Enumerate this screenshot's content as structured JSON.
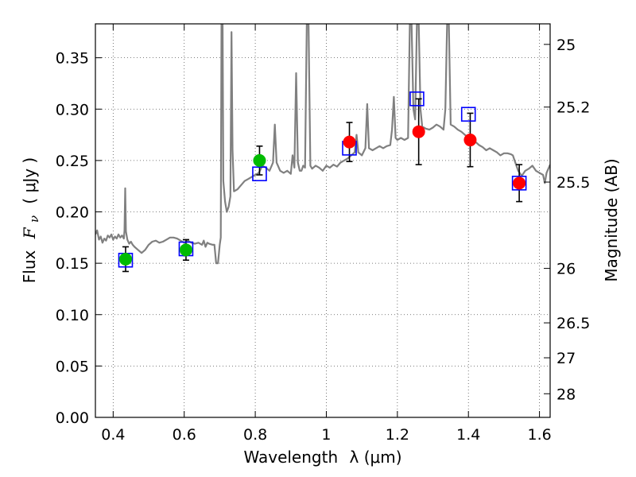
{
  "chart_data": {
    "type": "scatter",
    "title": "",
    "xlabel": "Wavelength",
    "xlabel_math": "λ (μm)",
    "ylabel": "Flux",
    "ylabel_math": "F",
    "ylabel_sub": "ν",
    "ylabel_unit": "( μJy )",
    "y2label": "Magnitude (AB)",
    "xlim": [
      0.35,
      1.63
    ],
    "ylim": [
      0.0,
      0.383
    ],
    "grid": true,
    "xticks": [
      0.4,
      0.6,
      0.8,
      1.0,
      1.2,
      1.4,
      1.6
    ],
    "xtick_labels": [
      "0.4",
      "0.6",
      "0.8",
      "1",
      "1.2",
      "1.4",
      "1.6"
    ],
    "yticks": [
      0.0,
      0.05,
      0.1,
      0.15,
      0.2,
      0.25,
      0.3,
      0.35
    ],
    "ytick_labels": [
      "0.00",
      "0.05",
      "0.10",
      "0.15",
      "0.20",
      "0.25",
      "0.30",
      "0.35"
    ],
    "y2ticks": [
      {
        "label": "25",
        "flux": 0.363
      },
      {
        "label": "25.2",
        "flux": 0.302
      },
      {
        "label": "25.5",
        "flux": 0.229
      },
      {
        "label": "26",
        "flux": 0.145
      },
      {
        "label": "26.5",
        "flux": 0.092
      },
      {
        "label": "27",
        "flux": 0.058
      },
      {
        "label": "28",
        "flux": 0.023
      }
    ],
    "colors": {
      "spectrum": "#808080",
      "model": "#0000ff",
      "green_points": "#00bb00",
      "red_points": "#ff0000",
      "errorbar": "#000000",
      "grid": "#555555"
    },
    "series": [
      {
        "kind": "spectrum",
        "points": [
          [
            0.35,
            0.178
          ],
          [
            0.355,
            0.182
          ],
          [
            0.36,
            0.173
          ],
          [
            0.365,
            0.176
          ],
          [
            0.37,
            0.17
          ],
          [
            0.375,
            0.174
          ],
          [
            0.38,
            0.172
          ],
          [
            0.385,
            0.177
          ],
          [
            0.39,
            0.175
          ],
          [
            0.395,
            0.178
          ],
          [
            0.4,
            0.173
          ],
          [
            0.405,
            0.176
          ],
          [
            0.41,
            0.174
          ],
          [
            0.415,
            0.178
          ],
          [
            0.42,
            0.175
          ],
          [
            0.425,
            0.177
          ],
          [
            0.43,
            0.174
          ],
          [
            0.432,
            0.182
          ],
          [
            0.434,
            0.223
          ],
          [
            0.436,
            0.181
          ],
          [
            0.44,
            0.173
          ],
          [
            0.445,
            0.169
          ],
          [
            0.45,
            0.171
          ],
          [
            0.455,
            0.168
          ],
          [
            0.46,
            0.166
          ],
          [
            0.47,
            0.163
          ],
          [
            0.48,
            0.16
          ],
          [
            0.49,
            0.163
          ],
          [
            0.5,
            0.168
          ],
          [
            0.51,
            0.171
          ],
          [
            0.52,
            0.172
          ],
          [
            0.53,
            0.17
          ],
          [
            0.54,
            0.171
          ],
          [
            0.55,
            0.173
          ],
          [
            0.56,
            0.175
          ],
          [
            0.57,
            0.175
          ],
          [
            0.58,
            0.174
          ],
          [
            0.59,
            0.172
          ],
          [
            0.6,
            0.17
          ],
          [
            0.61,
            0.172
          ],
          [
            0.62,
            0.17
          ],
          [
            0.63,
            0.169
          ],
          [
            0.64,
            0.17
          ],
          [
            0.65,
            0.168
          ],
          [
            0.655,
            0.172
          ],
          [
            0.66,
            0.166
          ],
          [
            0.665,
            0.17
          ],
          [
            0.67,
            0.169
          ],
          [
            0.68,
            0.168
          ],
          [
            0.685,
            0.168
          ],
          [
            0.69,
            0.15
          ],
          [
            0.695,
            0.15
          ],
          [
            0.7,
            0.168
          ],
          [
            0.703,
            0.175
          ],
          [
            0.705,
            0.383
          ],
          [
            0.708,
            0.383
          ],
          [
            0.71,
            0.23
          ],
          [
            0.715,
            0.21
          ],
          [
            0.72,
            0.2
          ],
          [
            0.725,
            0.205
          ],
          [
            0.73,
            0.215
          ],
          [
            0.733,
            0.375
          ],
          [
            0.736,
            0.26
          ],
          [
            0.74,
            0.22
          ],
          [
            0.75,
            0.222
          ],
          [
            0.76,
            0.226
          ],
          [
            0.77,
            0.23
          ],
          [
            0.78,
            0.232
          ],
          [
            0.79,
            0.234
          ],
          [
            0.8,
            0.236
          ],
          [
            0.81,
            0.238
          ],
          [
            0.82,
            0.245
          ],
          [
            0.83,
            0.243
          ],
          [
            0.84,
            0.24
          ],
          [
            0.85,
            0.248
          ],
          [
            0.855,
            0.285
          ],
          [
            0.86,
            0.248
          ],
          [
            0.87,
            0.24
          ],
          [
            0.88,
            0.238
          ],
          [
            0.89,
            0.24
          ],
          [
            0.9,
            0.237
          ],
          [
            0.905,
            0.255
          ],
          [
            0.91,
            0.243
          ],
          [
            0.915,
            0.335
          ],
          [
            0.92,
            0.248
          ],
          [
            0.925,
            0.24
          ],
          [
            0.93,
            0.24
          ],
          [
            0.935,
            0.245
          ],
          [
            0.94,
            0.243
          ],
          [
            0.945,
            0.383
          ],
          [
            0.95,
            0.383
          ],
          [
            0.955,
            0.245
          ],
          [
            0.96,
            0.242
          ],
          [
            0.97,
            0.245
          ],
          [
            0.98,
            0.243
          ],
          [
            0.99,
            0.24
          ],
          [
            1.0,
            0.245
          ],
          [
            1.01,
            0.243
          ],
          [
            1.02,
            0.246
          ],
          [
            1.03,
            0.244
          ],
          [
            1.04,
            0.248
          ],
          [
            1.05,
            0.25
          ],
          [
            1.06,
            0.252
          ],
          [
            1.07,
            0.255
          ],
          [
            1.08,
            0.258
          ],
          [
            1.085,
            0.275
          ],
          [
            1.09,
            0.258
          ],
          [
            1.1,
            0.255
          ],
          [
            1.11,
            0.262
          ],
          [
            1.115,
            0.305
          ],
          [
            1.12,
            0.262
          ],
          [
            1.13,
            0.26
          ],
          [
            1.14,
            0.262
          ],
          [
            1.15,
            0.264
          ],
          [
            1.16,
            0.262
          ],
          [
            1.17,
            0.264
          ],
          [
            1.18,
            0.265
          ],
          [
            1.185,
            0.28
          ],
          [
            1.19,
            0.312
          ],
          [
            1.195,
            0.272
          ],
          [
            1.2,
            0.27
          ],
          [
            1.21,
            0.272
          ],
          [
            1.22,
            0.27
          ],
          [
            1.23,
            0.272
          ],
          [
            1.235,
            0.383
          ],
          [
            1.24,
            0.383
          ],
          [
            1.245,
            0.3
          ],
          [
            1.25,
            0.29
          ],
          [
            1.255,
            0.383
          ],
          [
            1.26,
            0.383
          ],
          [
            1.265,
            0.3
          ],
          [
            1.27,
            0.283
          ],
          [
            1.28,
            0.281
          ],
          [
            1.29,
            0.28
          ],
          [
            1.3,
            0.282
          ],
          [
            1.31,
            0.285
          ],
          [
            1.32,
            0.283
          ],
          [
            1.33,
            0.28
          ],
          [
            1.335,
            0.3
          ],
          [
            1.34,
            0.383
          ],
          [
            1.345,
            0.383
          ],
          [
            1.35,
            0.285
          ],
          [
            1.36,
            0.283
          ],
          [
            1.37,
            0.28
          ],
          [
            1.38,
            0.278
          ],
          [
            1.39,
            0.275
          ],
          [
            1.4,
            0.272
          ],
          [
            1.41,
            0.272
          ],
          [
            1.42,
            0.268
          ],
          [
            1.43,
            0.265
          ],
          [
            1.44,
            0.263
          ],
          [
            1.45,
            0.26
          ],
          [
            1.46,
            0.262
          ],
          [
            1.47,
            0.26
          ],
          [
            1.48,
            0.258
          ],
          [
            1.49,
            0.255
          ],
          [
            1.5,
            0.257
          ],
          [
            1.51,
            0.257
          ],
          [
            1.52,
            0.256
          ],
          [
            1.525,
            0.255
          ],
          [
            1.53,
            0.25
          ],
          [
            1.54,
            0.24
          ],
          [
            1.55,
            0.235
          ],
          [
            1.56,
            0.24
          ],
          [
            1.57,
            0.242
          ],
          [
            1.58,
            0.245
          ],
          [
            1.59,
            0.24
          ],
          [
            1.6,
            0.238
          ],
          [
            1.61,
            0.236
          ],
          [
            1.615,
            0.228
          ],
          [
            1.62,
            0.238
          ],
          [
            1.63,
            0.246
          ]
        ]
      },
      {
        "kind": "model",
        "marker": "open-square",
        "points": [
          {
            "x": 0.435,
            "y": 0.153
          },
          {
            "x": 0.605,
            "y": 0.164
          },
          {
            "x": 0.812,
            "y": 0.237
          },
          {
            "x": 1.065,
            "y": 0.262
          },
          {
            "x": 1.255,
            "y": 0.31
          },
          {
            "x": 1.4,
            "y": 0.295
          },
          {
            "x": 1.543,
            "y": 0.228
          }
        ]
      },
      {
        "kind": "observed-green",
        "marker": "filled-circle",
        "points": [
          {
            "x": 0.435,
            "y": 0.154,
            "err": 0.012
          },
          {
            "x": 0.605,
            "y": 0.163,
            "err": 0.01
          },
          {
            "x": 0.812,
            "y": 0.25,
            "err": 0.014
          }
        ]
      },
      {
        "kind": "observed-red",
        "marker": "filled-circle",
        "points": [
          {
            "x": 1.065,
            "y": 0.268,
            "err": 0.019
          },
          {
            "x": 1.26,
            "y": 0.278,
            "err": 0.032
          },
          {
            "x": 1.405,
            "y": 0.27,
            "err": 0.026
          },
          {
            "x": 1.543,
            "y": 0.228,
            "err": 0.018
          }
        ]
      }
    ]
  }
}
